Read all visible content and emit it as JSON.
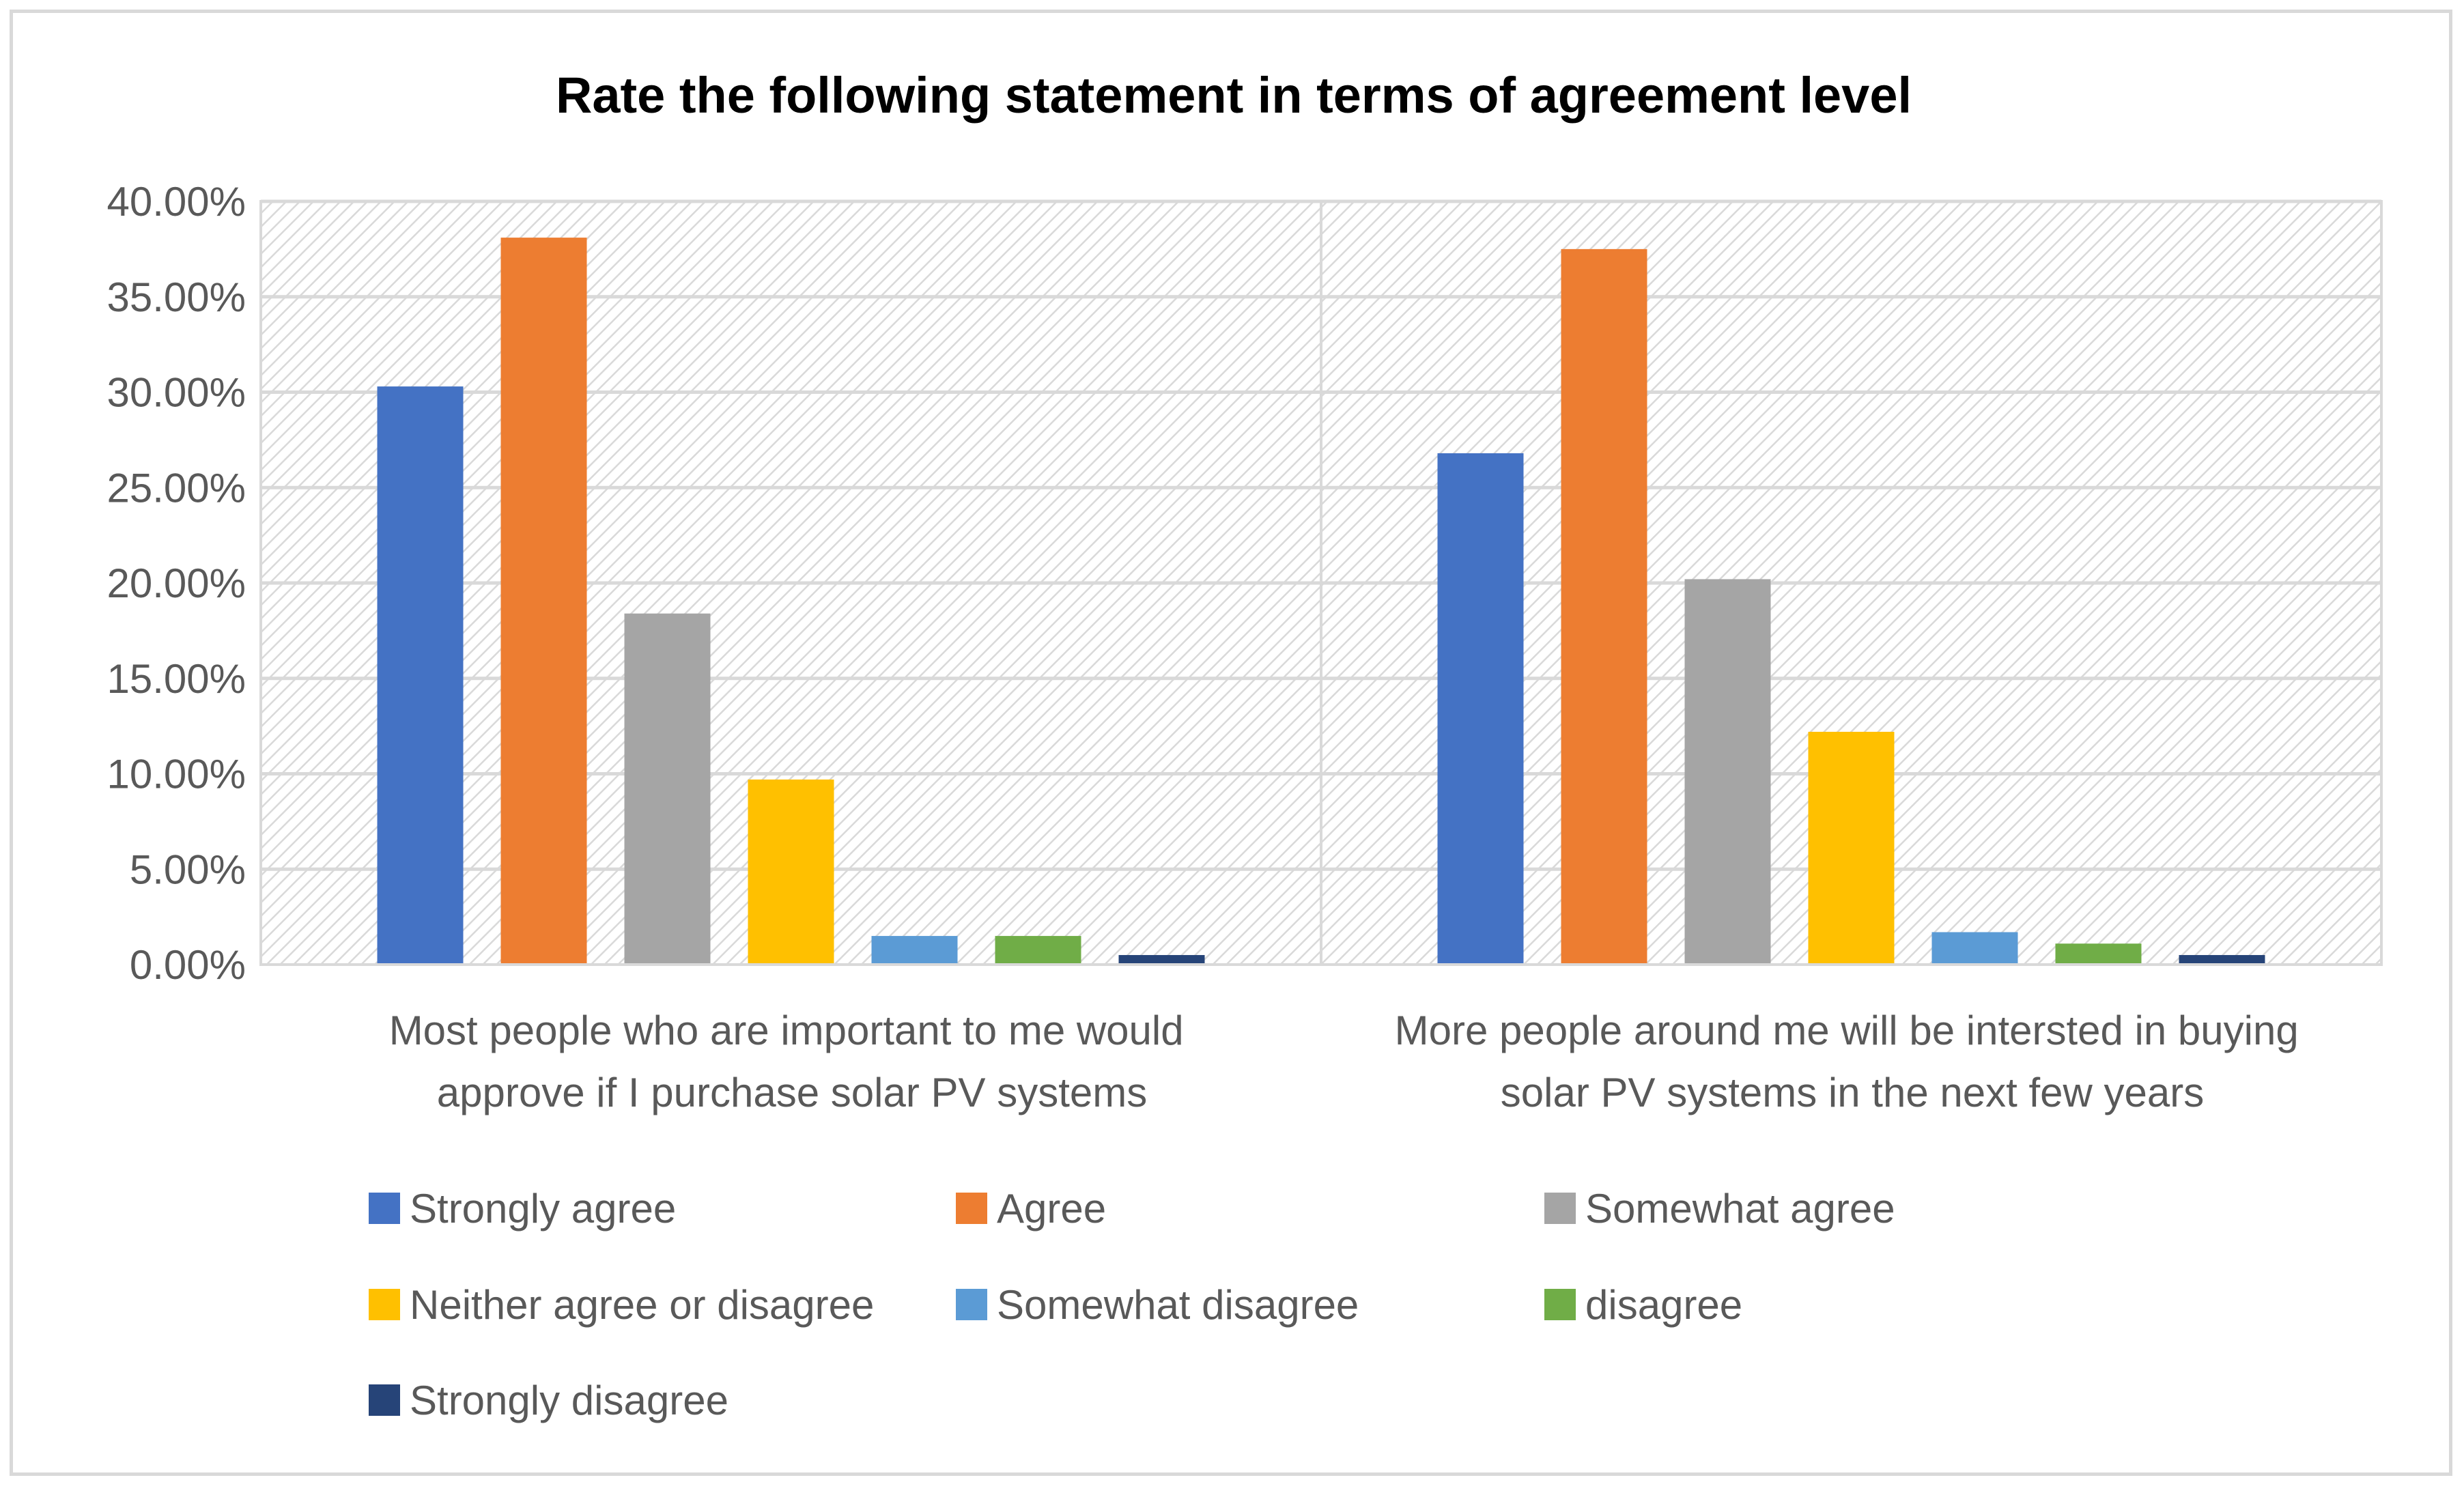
{
  "chart_data": {
    "type": "bar",
    "title": "Rate the following statement in terms of agreement level",
    "xlabel": "",
    "ylabel": "",
    "ylim": [
      0,
      0.4
    ],
    "yticks": [
      0,
      0.05,
      0.1,
      0.15,
      0.2,
      0.25,
      0.3,
      0.35,
      0.4
    ],
    "ytick_labels": [
      "0.00%",
      "5.00%",
      "10.00%",
      "15.00%",
      "20.00%",
      "25.00%",
      "30.00%",
      "35.00%",
      "40.00%"
    ],
    "grid": true,
    "legend_position": "bottom",
    "categories": [
      [
        "Most people who are important to me would",
        "approve if I purchase solar PV systems"
      ],
      [
        "More people around me will be intersted in buying",
        "solar PV systems in the next few years"
      ]
    ],
    "series": [
      {
        "name": "Strongly agree",
        "color": "#4472c4",
        "values": [
          0.303,
          0.268
        ]
      },
      {
        "name": "Agree",
        "color": "#ed7d31",
        "values": [
          0.381,
          0.375
        ]
      },
      {
        "name": "Somewhat agree",
        "color": "#a5a5a5",
        "values": [
          0.184,
          0.202
        ]
      },
      {
        "name": "Neither agree or disagree",
        "color": "#ffc000",
        "values": [
          0.097,
          0.122
        ]
      },
      {
        "name": "Somewhat disagree",
        "color": "#5b9bd5",
        "values": [
          0.015,
          0.017
        ]
      },
      {
        "name": "disagree",
        "color": "#70ad47",
        "values": [
          0.015,
          0.011
        ]
      },
      {
        "name": "Strongly disagree",
        "color": "#264478",
        "values": [
          0.005,
          0.005
        ]
      }
    ]
  }
}
